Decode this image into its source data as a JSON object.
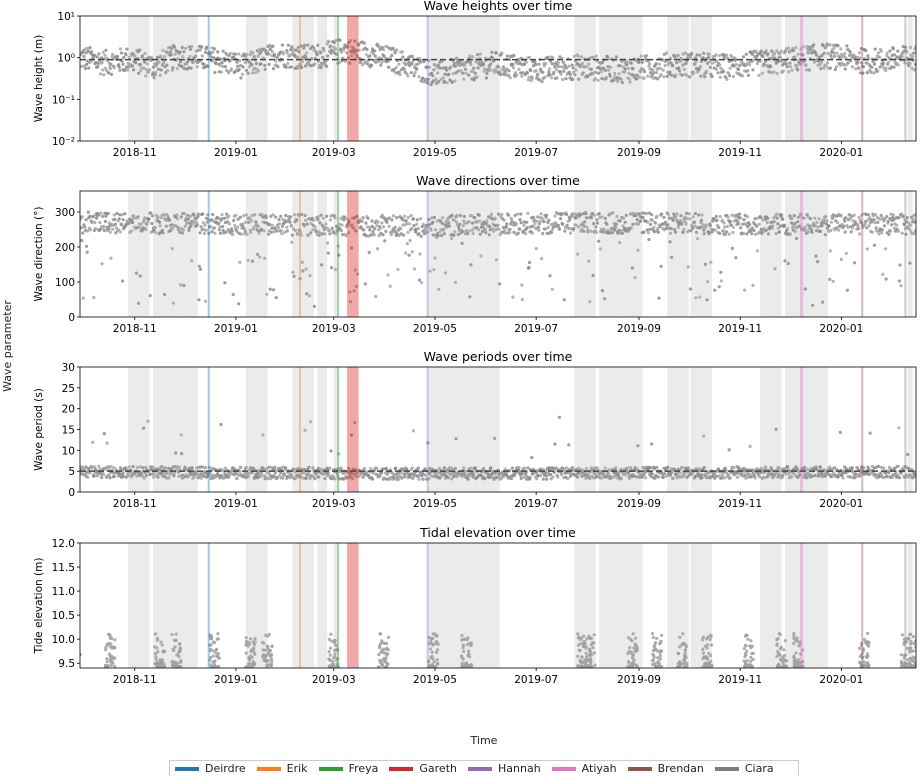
{
  "figure": {
    "ylabel": "Wave parameter",
    "xlabel": "Time"
  },
  "x_ticks": [
    "2018-11",
    "2019-01",
    "2019-03",
    "2019-05",
    "2019-07",
    "2019-09",
    "2019-11",
    "2020-01"
  ],
  "chart_data": [
    {
      "type": "scatter",
      "title": "Wave heights over time",
      "ylabel": "Wave height (m)",
      "yscale": "log",
      "ylim": [
        0.01,
        10
      ],
      "xlim": [
        "2018-09-29",
        "2020-02-15"
      ],
      "y_ticks": [
        "10⁻²",
        "10⁻¹",
        "10⁰",
        "10¹"
      ],
      "reference_line": 0.9,
      "series_profile": [
        [
          0,
          1.0
        ],
        [
          15,
          0.75
        ],
        [
          30,
          0.9
        ],
        [
          45,
          0.6
        ],
        [
          60,
          1.1
        ],
        [
          80,
          0.9
        ],
        [
          100,
          0.6
        ],
        [
          120,
          1.2
        ],
        [
          140,
          1.0
        ],
        [
          160,
          1.5
        ],
        [
          175,
          1.2
        ],
        [
          200,
          0.6
        ],
        [
          215,
          0.4
        ],
        [
          230,
          0.5
        ],
        [
          250,
          0.7
        ],
        [
          275,
          0.5
        ],
        [
          300,
          0.6
        ],
        [
          330,
          0.5
        ],
        [
          360,
          0.7
        ],
        [
          390,
          0.6
        ],
        [
          420,
          0.8
        ],
        [
          450,
          1.1
        ],
        [
          475,
          0.8
        ],
        [
          505,
          1.0
        ]
      ],
      "spread": 0.35
    },
    {
      "type": "scatter",
      "title": "Wave directions over time",
      "ylabel": "Wave direction (°)",
      "yscale": "linear",
      "ylim": [
        0,
        360
      ],
      "xlim": [
        "2018-09-29",
        "2020-02-15"
      ],
      "y_ticks": [
        "0",
        "100",
        "200",
        "300"
      ],
      "series_profile": [
        [
          0,
          270
        ],
        [
          100,
          265
        ],
        [
          200,
          260
        ],
        [
          300,
          270
        ],
        [
          400,
          265
        ],
        [
          505,
          265
        ]
      ],
      "spread": 30
    },
    {
      "type": "scatter",
      "title": "Wave periods over time",
      "ylabel": "Wave period (s)",
      "yscale": "linear",
      "ylim": [
        0,
        30
      ],
      "xlim": [
        "2018-09-29",
        "2020-02-15"
      ],
      "y_ticks": [
        "0",
        "5",
        "10",
        "15",
        "20",
        "25",
        "30"
      ],
      "reference_line": 5,
      "series_profile": [
        [
          0,
          4.8
        ],
        [
          100,
          4.6
        ],
        [
          200,
          4.4
        ],
        [
          300,
          4.5
        ],
        [
          400,
          4.7
        ],
        [
          505,
          4.8
        ]
      ],
      "spread": 1.4
    },
    {
      "type": "scatter",
      "title": "Tidal elevation over time",
      "ylabel": "Tide elevation (m)",
      "yscale": "linear",
      "ylim": [
        9.4,
        12.0
      ],
      "xlim": [
        "2018-09-29",
        "2020-02-15"
      ],
      "y_ticks": [
        "9.5",
        "10.0",
        "10.5",
        "11.0",
        "11.5",
        "12.0"
      ],
      "series_profile": [
        [
          0,
          9.5
        ],
        [
          505,
          9.5
        ]
      ],
      "spread": 0.2
    }
  ],
  "gray_bands": [
    [
      "2018-10-28",
      "2018-11-10"
    ],
    [
      "2018-11-12",
      "2018-11-26"
    ],
    [
      "2018-11-26",
      "2018-12-09"
    ],
    [
      "2019-01-07",
      "2019-01-20"
    ],
    [
      "2019-02-04",
      "2019-02-17"
    ],
    [
      "2019-02-19",
      "2019-02-25"
    ],
    [
      "2019-03-01",
      "2019-03-04"
    ],
    [
      "2019-04-27",
      "2019-05-01"
    ],
    [
      "2019-05-01",
      "2019-05-14"
    ],
    [
      "2019-05-14",
      "2019-05-27"
    ],
    [
      "2019-05-27",
      "2019-06-09"
    ],
    [
      "2019-07-24",
      "2019-08-06"
    ],
    [
      "2019-08-08",
      "2019-08-21"
    ],
    [
      "2019-08-21",
      "2019-09-03"
    ],
    [
      "2019-09-18",
      "2019-10-01"
    ],
    [
      "2019-10-02",
      "2019-10-15"
    ],
    [
      "2019-11-13",
      "2019-11-26"
    ],
    [
      "2019-11-28",
      "2019-12-11"
    ],
    [
      "2019-12-11",
      "2019-12-24"
    ],
    [
      "2020-02-10",
      "2020-02-13"
    ]
  ],
  "storms": [
    {
      "name": "Deirdre",
      "color": "#1f77b4",
      "start": "2018-12-15",
      "end": "2018-12-16"
    },
    {
      "name": "Erik",
      "color": "#ff7f0e",
      "start": "2019-02-08",
      "end": "2019-02-09"
    },
    {
      "name": "Freya",
      "color": "#2ca02c",
      "start": "2019-03-03",
      "end": "2019-03-04"
    },
    {
      "name": "Gareth",
      "color": "#d62728",
      "start": "2019-03-09",
      "end": "2019-03-16"
    },
    {
      "name": "Hannah",
      "color": "#9467bd",
      "start": "2019-04-26",
      "end": "2019-04-27"
    },
    {
      "name": "Atiyah",
      "color": "#e377c2",
      "start": "2019-12-07",
      "end": "2019-12-09"
    },
    {
      "name": "Brendan",
      "color": "#8c564b",
      "start": "2020-01-13",
      "end": "2020-01-14"
    },
    {
      "name": "Ciara",
      "color": "#7f7f7f",
      "start": "2020-02-08",
      "end": "2020-02-09"
    }
  ]
}
